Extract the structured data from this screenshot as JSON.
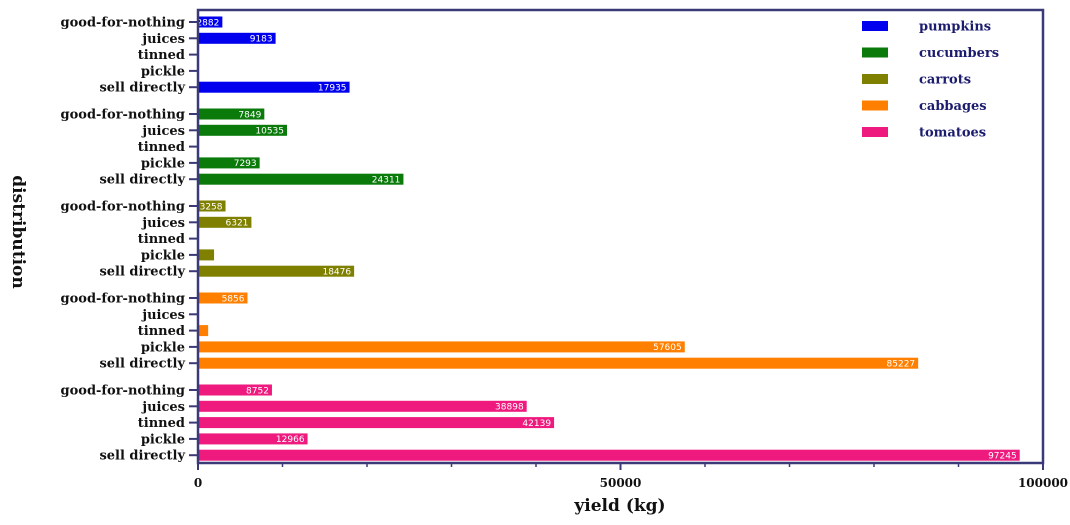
{
  "chart_data": {
    "type": "bar",
    "orientation": "horizontal",
    "xlabel": "yield (kg)",
    "ylabel": "distribution",
    "xlim": [
      0,
      100000
    ],
    "x_ticks": [
      0,
      50000,
      100000
    ],
    "x_tick_labels": [
      "0",
      "50000",
      "100000"
    ],
    "legend_position": "top-right",
    "categories": [
      "good-for-nothing",
      "juices",
      "tinned",
      "pickle",
      "sell directly"
    ],
    "series": [
      {
        "name": "pumpkins",
        "color": "#0000ee",
        "values": [
          2882,
          9183,
          0,
          0,
          17935
        ],
        "labels": [
          "2882",
          "9183",
          "",
          "",
          "17935"
        ]
      },
      {
        "name": "cucumbers",
        "color": "#0a7a0a",
        "values": [
          7849,
          10535,
          0,
          7293,
          24311
        ],
        "labels": [
          "7849",
          "10535",
          "",
          "7293",
          "24311"
        ]
      },
      {
        "name": "carrots",
        "color": "#808000",
        "values": [
          3258,
          6321,
          0,
          1900,
          18476
        ],
        "labels": [
          "3258",
          "6321",
          "",
          "",
          "18476"
        ]
      },
      {
        "name": "cabbages",
        "color": "#ff8000",
        "values": [
          5856,
          0,
          1200,
          57605,
          85227
        ],
        "labels": [
          "5856",
          "",
          "",
          "57605",
          "85227"
        ]
      },
      {
        "name": "tomatoes",
        "color": "#ee1a7e",
        "values": [
          8752,
          38898,
          42139,
          12966,
          97245
        ],
        "labels": [
          "8752",
          "38898",
          "42139",
          "12966",
          "97245"
        ]
      }
    ]
  }
}
